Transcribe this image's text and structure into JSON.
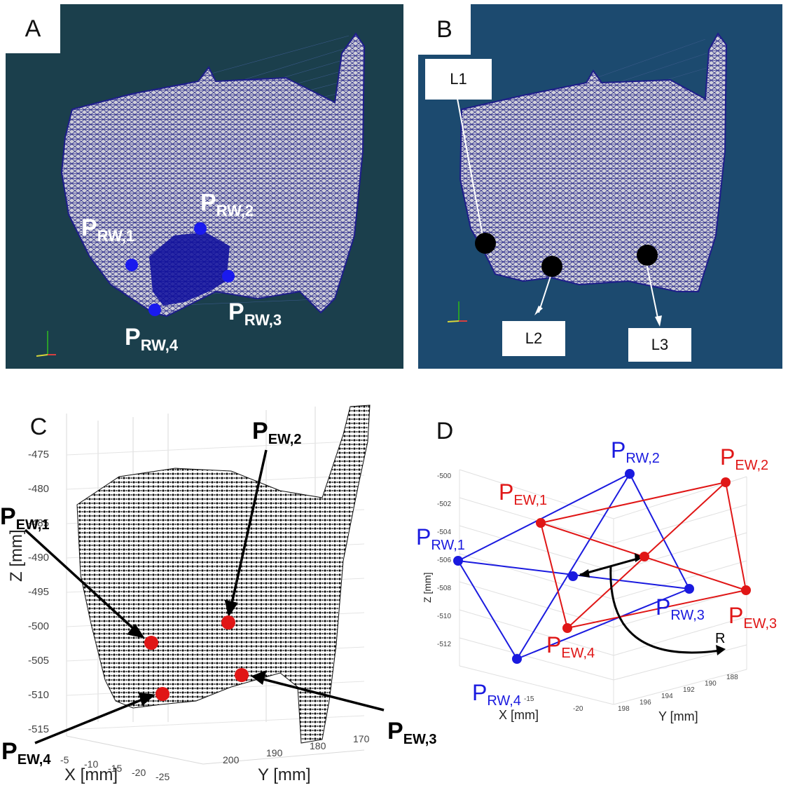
{
  "panels": {
    "a": {
      "letter": "A",
      "points": [
        {
          "main": "P",
          "sub": "RW,1"
        },
        {
          "main": "P",
          "sub": "RW,2"
        },
        {
          "main": "P",
          "sub": "RW,3"
        },
        {
          "main": "P",
          "sub": "RW,4"
        }
      ],
      "axis_triad": {
        "z": "Z",
        "x": "X",
        "y": "Y"
      }
    },
    "b": {
      "letter": "B",
      "landmarks": [
        "L1",
        "L2",
        "L3"
      ],
      "axis_triad": {
        "z": "Z",
        "x": "X",
        "y": "Y"
      }
    },
    "c": {
      "letter": "C",
      "points": [
        {
          "main": "P",
          "sub": "EW,1"
        },
        {
          "main": "P",
          "sub": "EW,2"
        },
        {
          "main": "P",
          "sub": "EW,3"
        },
        {
          "main": "P",
          "sub": "EW,4"
        }
      ],
      "zlabel": "Z [mm]",
      "xlabel": "X [mm]",
      "ylabel": "Y [mm]",
      "z_ticks": [
        "-475",
        "-480",
        "-485",
        "-490",
        "-495",
        "-500",
        "-505",
        "-510",
        "-515"
      ],
      "x_ticks": [
        "-5",
        "-10",
        "-15",
        "-20",
        "-25"
      ],
      "y_ticks": [
        "200",
        "190",
        "180",
        "170"
      ]
    },
    "d": {
      "letter": "D",
      "rw_points": [
        {
          "main": "P",
          "sub": "RW,1"
        },
        {
          "main": "P",
          "sub": "RW,2"
        },
        {
          "main": "P",
          "sub": "RW,3"
        },
        {
          "main": "P",
          "sub": "RW,4"
        }
      ],
      "ew_points": [
        {
          "main": "P",
          "sub": "EW,1"
        },
        {
          "main": "P",
          "sub": "EW,2"
        },
        {
          "main": "P",
          "sub": "EW,3"
        },
        {
          "main": "P",
          "sub": "EW,4"
        }
      ],
      "rotation_label": "R",
      "zlabel": "Z [mm]",
      "xlabel": "X [mm]",
      "ylabel": "Y [mm]",
      "z_ticks": [
        "-500",
        "-502",
        "-504",
        "-506",
        "-508",
        "-510",
        "-512"
      ],
      "x_ticks": [
        "-15",
        "-20"
      ],
      "y_ticks": [
        "198",
        "196",
        "194",
        "192",
        "190",
        "188"
      ],
      "colors": {
        "rw": "#1a1adf",
        "ew": "#e01616"
      }
    }
  }
}
